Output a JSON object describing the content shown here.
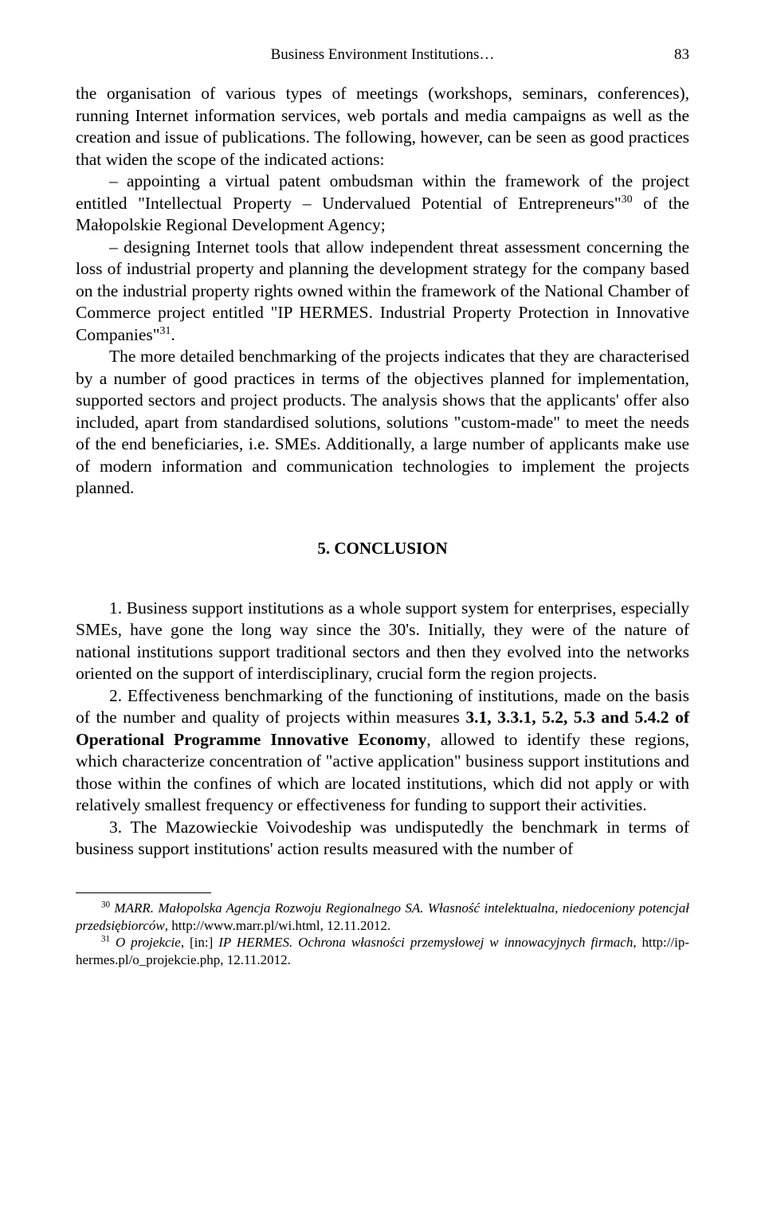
{
  "header": {
    "running_title": "Business Environment Institutions…",
    "page_number": "83"
  },
  "paragraphs": {
    "p1": "the organisation of various types of meetings (workshops, seminars, conferences), running Internet information services, web portals and media campaigns as well as the creation and issue of publications. The following, however, can be seen as good practices that widen the scope of the indicated actions:",
    "p2_pre": "– appointing a virtual patent ombudsman within the framework of the project entitled \"Intellectual Property – Undervalued Potential of Entrepreneurs\"",
    "p2_sup": "30",
    "p2_post": " of the Małopolskie Regional Development Agency;",
    "p3_pre": "– designing Internet tools that allow independent threat assessment concerning the loss of industrial property and planning the development strategy for the company based on the industrial property rights owned within the framework of the National Chamber of Commerce project entitled \"IP HERMES. Industrial Property Protection in Innovative Companies\"",
    "p3_sup": "31",
    "p3_post": ".",
    "p4": "The more detailed benchmarking of the projects indicates that they are characterised by a number of good practices in terms of the objectives planned for implementation, supported sectors and project products. The analysis shows that the applicants' offer also included, apart from standardised solutions, solutions \"custom-made\" to meet the needs of the end beneficiaries, i.e. SMEs. Additionally, a large number of applicants make use of modern information and communication technologies to implement the projects planned."
  },
  "section": {
    "heading": "5. CONCLUSION"
  },
  "conclusions": {
    "c1": "1. Business support institutions as a whole support system for enterprises, especially SMEs, have gone the long way since the 30's. Initially, they were of the nature of national institutions support traditional sectors and then they evolved into the networks oriented on the support of interdisciplinary, crucial form the region projects.",
    "c2_pre": "2. Effectiveness benchmarking of the functioning of institutions, made on the basis of the number and quality of projects within measures ",
    "c2_bold": "3.1, 3.3.1, 5.2, 5.3 and 5.4.2 of Operational Programme Innovative Economy",
    "c2_post": ", allowed to identify these regions, which characterize concentration of \"active application\" business support institutions and those within the confines of which are located institutions, which did not apply or with relatively smallest frequency or effectiveness for funding to support their activities.",
    "c3": "3. The Mazowieckie Voivodeship was undisputedly the benchmark in terms of business support institutions' action results measured with the number of"
  },
  "footnotes": {
    "f30_num": "30",
    "f30_italic1": "MARR. Małopolska Agencja Rozwoju Regionalnego SA. Własność intelektualna, niedoceniony potencjał przedsiębiorców",
    "f30_rest": ", http://www.marr.pl/wi.html, 12.11.2012.",
    "f31_num": "31",
    "f31_italic1": "O projekcie",
    "f31_mid": ", [in:] ",
    "f31_italic2": "IP HERMES. Ochrona własności przemysłowej w innowacyjnych firmach",
    "f31_rest": ", http://ip-hermes.pl/o_projekcie.php, 12.11.2012."
  }
}
